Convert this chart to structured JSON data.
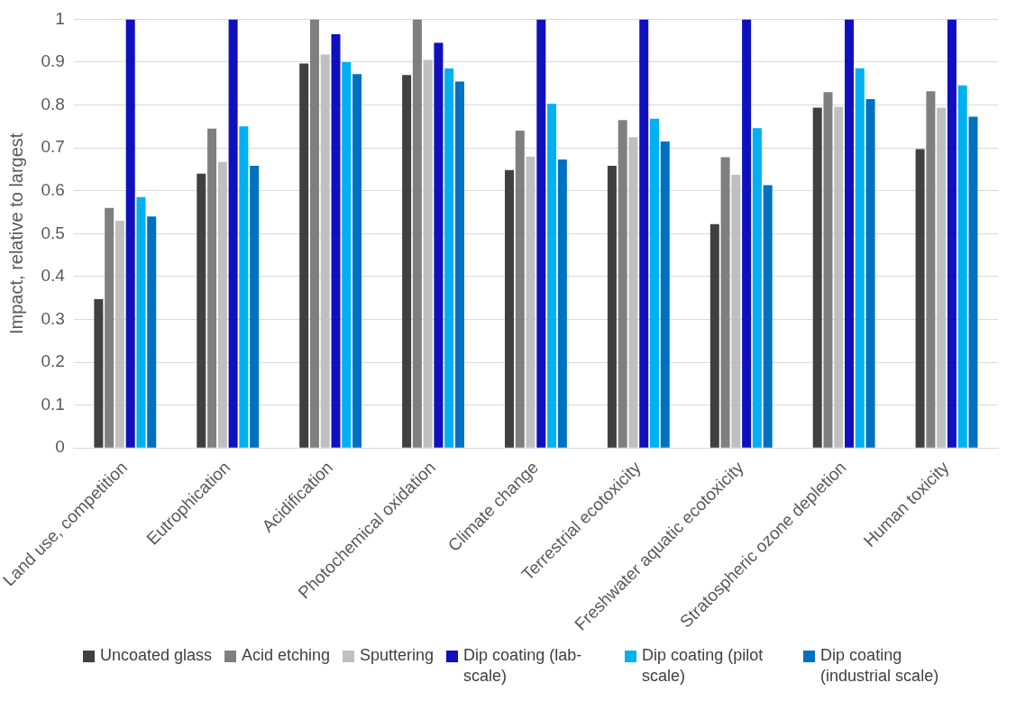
{
  "chart_data": {
    "type": "bar",
    "ylabel": "Impact, relative to largest",
    "categories": [
      "Land use, competition",
      "Eutrophication",
      "Acidification",
      "Photochemical oxidation",
      "Climate change",
      "Terrestrial ecotoxicity",
      "Freshwater aquatic ecotoxicity",
      "Stratospheric ozone depletion",
      "Human toxicity"
    ],
    "series": [
      {
        "name": "Uncoated glass",
        "color": "#404040",
        "values": [
          0.347,
          0.64,
          0.897,
          0.87,
          0.648,
          0.658,
          0.522,
          0.794,
          0.697
        ]
      },
      {
        "name": "Acid etching",
        "color": "#7f7f7f",
        "values": [
          0.56,
          0.745,
          1,
          1,
          0.74,
          0.765,
          0.678,
          0.83,
          0.832
        ]
      },
      {
        "name": "Sputtering",
        "color": "#bfbfbf",
        "values": [
          0.53,
          0.667,
          0.918,
          0.905,
          0.68,
          0.725,
          0.637,
          0.796,
          0.794
        ]
      },
      {
        "name": "Dip coating (lab-scale)",
        "color": "#1010bf",
        "values": [
          1,
          1,
          0.965,
          0.945,
          1,
          1,
          1,
          1,
          1
        ]
      },
      {
        "name": "Dip coating (pilot scale)",
        "color": "#00b0f0",
        "values": [
          0.585,
          0.75,
          0.9,
          0.885,
          0.803,
          0.768,
          0.746,
          0.886,
          0.846
        ]
      },
      {
        "name": "Dip coating (industrial scale)",
        "color": "#0070c0",
        "values": [
          0.54,
          0.658,
          0.872,
          0.855,
          0.673,
          0.715,
          0.613,
          0.814,
          0.773
        ]
      }
    ],
    "ylim": [
      0,
      1
    ],
    "yticks": [
      0,
      0.1,
      0.2,
      0.3,
      0.4,
      0.5,
      0.6,
      0.7,
      0.8,
      0.9,
      1
    ],
    "grid": "y",
    "legend": "bottom"
  }
}
